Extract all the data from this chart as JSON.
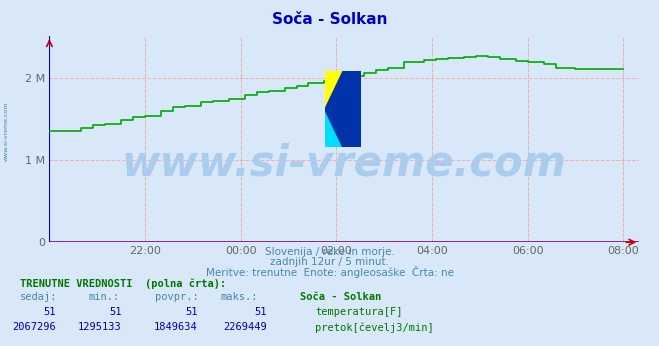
{
  "title": "Soča - Solkan",
  "title_color": "#0000cc",
  "background_color": "#d8e8f8",
  "plot_bg_color": "#d8e8f8",
  "watermark_text": "www.si-vreme.com",
  "watermark_color": "#aaccee",
  "subtitle_lines": [
    "Slovenija / reke in morje.",
    "zadnjih 12ur / 5 minut.",
    "Meritve: trenutne  Enote: angleosaške  Črta: ne"
  ],
  "subtitle_color": "#4488aa",
  "x_ticks_labels": [
    "22:00",
    "00:00",
    "02:00",
    "04:00",
    "06:00",
    "08:00"
  ],
  "x_ticks_pos": [
    24,
    48,
    72,
    96,
    120,
    144
  ],
  "y_ticks_labels": [
    "0",
    "1 M",
    "2 M"
  ],
  "y_ticks_vals": [
    0,
    1000000,
    2000000
  ],
  "ylim": [
    0,
    2500000
  ],
  "xlim": [
    0,
    148
  ],
  "grid_color": "#ffaaaa",
  "grid_color_dot": "#aaccaa",
  "axis_color": "#cc0000",
  "tick_color": "#666666",
  "temp_line_color": "#cc0000",
  "flow_line_color": "#00aa00",
  "bottom_line_color": "#880088",
  "left_line_color": "#0000cc",
  "table_header": "TRENUTNE VREDNOSTI  (polna črta):",
  "table_col1_header": "sedaj:",
  "table_col2_header": "min.:",
  "table_col3_header": "povpr.:",
  "table_col4_header": "maks.:",
  "table_col5_header": "Soča - Solkan",
  "row1_vals": [
    "51",
    "51",
    "51",
    "51"
  ],
  "row1_label": "temperatura[F]",
  "row1_color": "#cc0000",
  "row2_vals": [
    "2067296",
    "1295133",
    "1849634",
    "2269449"
  ],
  "row2_label": "pretok[čevelj3/min]",
  "row2_color": "#00aa00",
  "table_val_color": "#0000aa",
  "table_header_color": "#007700",
  "table_col_color": "#4488aa",
  "watermark_fontsize": 30,
  "n_points": 145
}
